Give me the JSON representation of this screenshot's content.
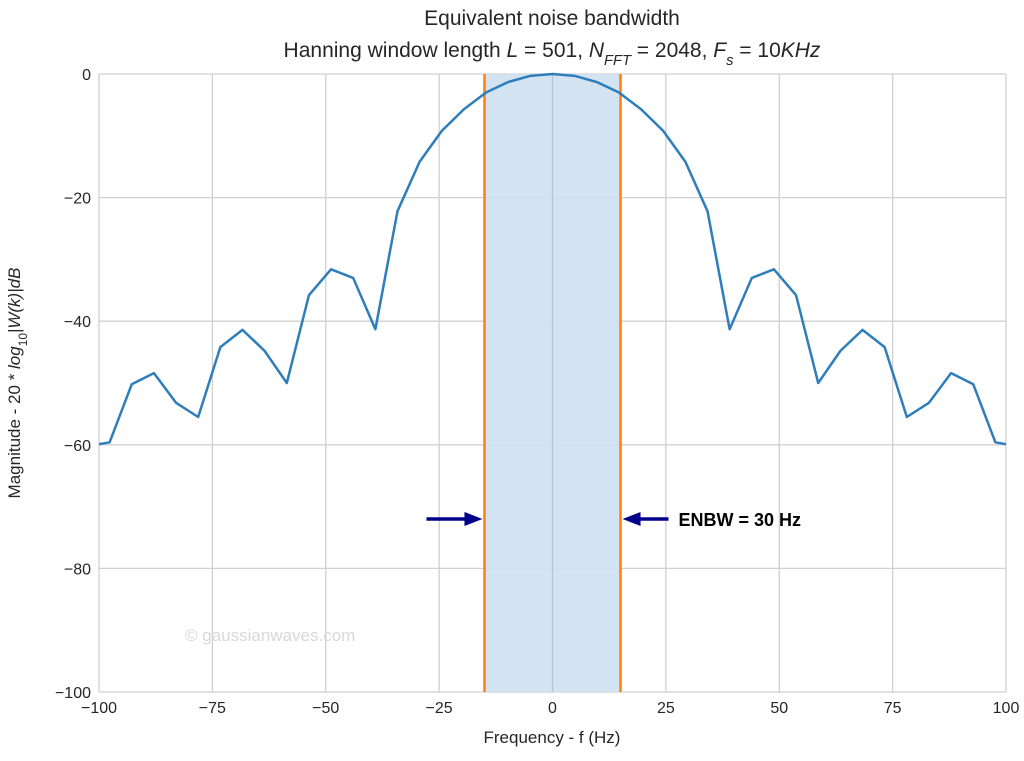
{
  "chart_data": {
    "type": "line",
    "title": [
      "Equivalent noise bandwidth",
      "Hanning window length L = 501, NFFT = 2048, Fs = 10KHz"
    ],
    "title_line2_parts": [
      {
        "t": "Hanning window length "
      },
      {
        "t": "L",
        "i": true
      },
      {
        "t": " = 501, "
      },
      {
        "t": "N",
        "i": true
      },
      {
        "t": "FFT",
        "i": true,
        "sub": true
      },
      {
        "t": " = 2048, "
      },
      {
        "t": "F",
        "i": true
      },
      {
        "t": "s",
        "i": true,
        "sub": true
      },
      {
        "t": " = 10"
      },
      {
        "t": "KHz",
        "i": true
      }
    ],
    "xlabel": "Frequency - f (Hz)",
    "ylabel_parts": [
      {
        "t": "Magnitude - 20 * "
      },
      {
        "t": "log",
        "i": true
      },
      {
        "t": "10",
        "sub": true
      },
      {
        "t": "|W(k)|dB",
        "i": true
      }
    ],
    "xlim": [
      -100,
      100
    ],
    "ylim": [
      -100,
      0
    ],
    "xticks": [
      -100,
      -75,
      -50,
      -25,
      0,
      25,
      50,
      75,
      100
    ],
    "xtick_labels": [
      "−100",
      "−75",
      "−50",
      "−25",
      "0",
      "25",
      "50",
      "75",
      "100"
    ],
    "yticks": [
      0,
      -20,
      -40,
      -60,
      -80,
      -100
    ],
    "ytick_labels": [
      "0",
      "−20",
      "−40",
      "−60",
      "−80",
      "−100"
    ],
    "grid": true,
    "series": [
      {
        "color": "#2e7ebc",
        "x": [
          -100,
          -97.66,
          -92.77,
          -87.89,
          -83.01,
          -78.13,
          -73.24,
          -68.36,
          -63.48,
          -58.59,
          -53.71,
          -48.83,
          -43.95,
          -39.06,
          -34.18,
          -29.3,
          -24.41,
          -19.53,
          -14.65,
          -9.77,
          -4.88,
          0,
          4.88,
          9.77,
          14.65,
          19.53,
          24.41,
          29.3,
          34.18,
          39.06,
          43.95,
          48.83,
          53.71,
          58.59,
          63.48,
          68.36,
          73.24,
          78.13,
          83.01,
          87.89,
          92.77,
          97.66,
          100
        ],
        "y": [
          -59.9,
          -59.6,
          -50.2,
          -48.4,
          -53.2,
          -55.5,
          -44.2,
          -41.4,
          -44.8,
          -50.0,
          -35.8,
          -31.6,
          -33.0,
          -41.3,
          -22.2,
          -14.2,
          -9.2,
          -5.7,
          -3.0,
          -1.3,
          -0.3,
          0,
          -0.3,
          -1.3,
          -3.0,
          -5.7,
          -9.2,
          -14.2,
          -22.2,
          -41.3,
          -33.0,
          -31.6,
          -35.8,
          -50.0,
          -44.8,
          -41.4,
          -44.2,
          -55.5,
          -53.2,
          -48.4,
          -50.2,
          -59.6,
          -59.9
        ]
      }
    ],
    "band": {
      "from": -15,
      "to": 15,
      "fill": "#cfe0ef",
      "edge_color": "#ff7f0e"
    },
    "annotation": {
      "text": "ENBW = 30 Hz",
      "y": -72,
      "arrow_color": "#00008b"
    },
    "watermark": "© gaussianwaves.com"
  }
}
